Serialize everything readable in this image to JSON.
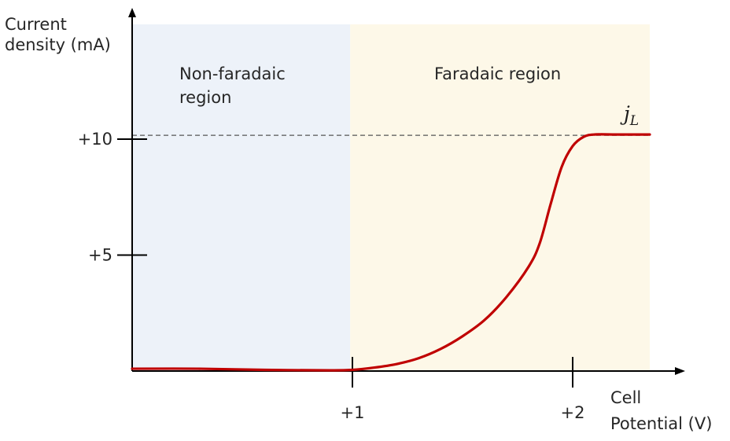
{
  "chart_data": {
    "type": "line",
    "ylabel": [
      "Current",
      "density (mA)"
    ],
    "xlabel": [
      "Cell",
      "Potential (V)"
    ],
    "xlim": [
      0.0,
      2.35
    ],
    "ylim": [
      0.0,
      10.2
    ],
    "x_ticks": [
      {
        "value": 1,
        "label": "+1"
      },
      {
        "value": 2,
        "label": "+2"
      }
    ],
    "y_ticks": [
      {
        "value": 5,
        "label": "+5"
      },
      {
        "value": 10,
        "label": "+10"
      }
    ],
    "regions": [
      {
        "name": "non-faradaic",
        "label": [
          "Non-faradaic",
          "region"
        ],
        "x_from": 0.0,
        "x_to": 0.99,
        "color": "#EDF2F9"
      },
      {
        "name": "faradaic",
        "label": [
          "Faradaic region"
        ],
        "x_from": 0.99,
        "x_to": 2.35,
        "color": "#FDF8E8"
      }
    ],
    "limit_line": {
      "label": "j",
      "label_sub": "L",
      "y": 10.2,
      "style": "dashed",
      "color": "#555555"
    },
    "series": [
      {
        "color": "#C00000",
        "points": [
          [
            0.0,
            0.1
          ],
          [
            0.3,
            0.1
          ],
          [
            0.6,
            0.05
          ],
          [
            0.9,
            0.03
          ],
          [
            1.0,
            0.05
          ],
          [
            1.1,
            0.15
          ],
          [
            1.2,
            0.3
          ],
          [
            1.3,
            0.55
          ],
          [
            1.4,
            0.95
          ],
          [
            1.5,
            1.5
          ],
          [
            1.6,
            2.2
          ],
          [
            1.7,
            3.2
          ],
          [
            1.8,
            4.5
          ],
          [
            1.85,
            5.5
          ],
          [
            1.9,
            7.2
          ],
          [
            1.95,
            8.8
          ],
          [
            2.0,
            9.7
          ],
          [
            2.05,
            10.1
          ],
          [
            2.1,
            10.2
          ],
          [
            2.2,
            10.2
          ],
          [
            2.35,
            10.2
          ]
        ]
      }
    ]
  }
}
